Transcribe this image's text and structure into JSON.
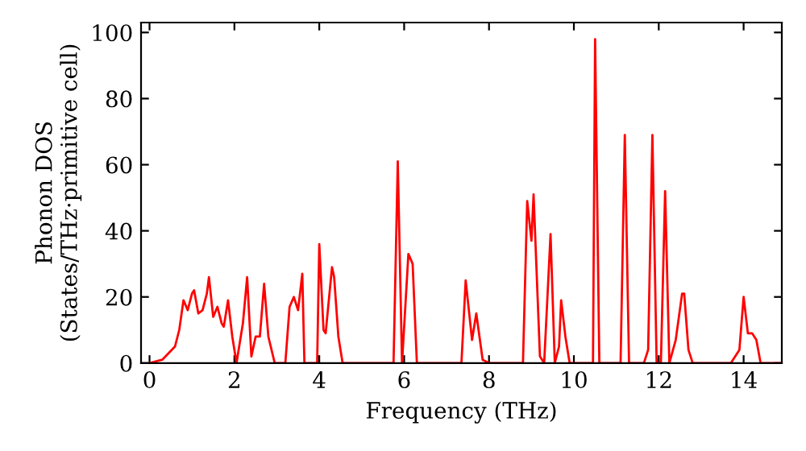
{
  "chart_data": {
    "type": "line",
    "xlabel": "Frequency (THz)",
    "ylabel": "Phonon DOS\n(States/THz·primitive cell)",
    "xlim": [
      -0.2,
      14.9
    ],
    "ylim": [
      0,
      103
    ],
    "xticks": [
      0,
      2,
      4,
      6,
      8,
      10,
      12,
      14
    ],
    "yticks": [
      0,
      20,
      40,
      60,
      80,
      100
    ],
    "grid": false,
    "marker": "none",
    "line_style": "solid",
    "series": [
      {
        "color": "#ff0000",
        "x": [
          0,
          0.3,
          0.6,
          0.7,
          0.8,
          0.9,
          1.0,
          1.05,
          1.15,
          1.25,
          1.35,
          1.4,
          1.5,
          1.6,
          1.7,
          1.75,
          1.85,
          1.95,
          2.05,
          2.2,
          2.3,
          2.4,
          2.5,
          2.6,
          2.7,
          2.8,
          2.95,
          3.2,
          3.3,
          3.4,
          3.5,
          3.6,
          3.65,
          3.95,
          4.0,
          4.1,
          4.15,
          4.3,
          4.35,
          4.45,
          4.55,
          5.75,
          5.85,
          5.95,
          6.1,
          6.2,
          6.3,
          7.35,
          7.45,
          7.6,
          7.7,
          7.85,
          8.0,
          8.8,
          8.9,
          9.0,
          9.05,
          9.2,
          9.3,
          9.45,
          9.55,
          9.65,
          9.7,
          9.8,
          9.9,
          10.45,
          10.5,
          10.6,
          11.1,
          11.2,
          11.3,
          11.65,
          11.75,
          11.85,
          11.95,
          12.05,
          12.15,
          12.25,
          12.4,
          12.55,
          12.6,
          12.7,
          12.8,
          13.7,
          13.9,
          14.0,
          14.1,
          14.2,
          14.3,
          14.4,
          14.9
        ],
        "values": [
          0,
          1,
          5,
          10,
          19,
          16,
          21,
          22,
          15,
          16,
          21,
          26,
          14,
          17,
          12,
          11,
          19,
          8,
          0,
          12,
          26,
          2,
          8,
          8,
          24,
          8,
          0,
          0,
          17,
          20,
          16,
          27,
          0,
          0,
          36,
          10,
          9,
          29,
          26,
          8,
          0,
          0,
          61,
          0,
          33,
          30,
          0,
          0,
          25,
          7,
          15,
          1,
          0,
          0,
          49,
          37,
          51,
          2,
          0,
          39,
          0,
          5,
          19,
          8,
          0,
          0,
          98,
          0,
          0,
          69,
          0,
          0,
          4,
          69,
          0,
          0,
          52,
          0,
          7,
          21,
          21,
          4,
          0,
          0,
          4,
          20,
          9,
          9,
          7,
          0,
          0
        ]
      }
    ]
  }
}
